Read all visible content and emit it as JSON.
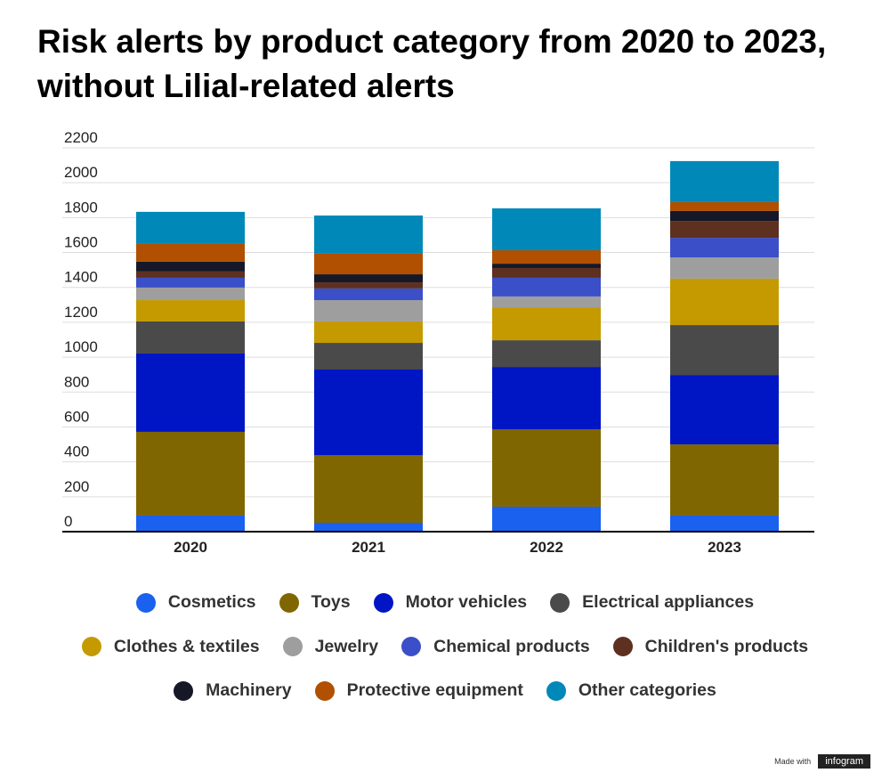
{
  "chart_data": {
    "type": "stacked_bar",
    "title": "Risk alerts by product category from 2020 to 2023, without Lilial-related alerts",
    "categories": [
      "2020",
      "2021",
      "2022",
      "2023"
    ],
    "series": [
      {
        "name": "Cosmetics",
        "color": "#1a61f0",
        "values": [
          92,
          51,
          143,
          92
        ]
      },
      {
        "name": "Toys",
        "color": "#806600",
        "values": [
          480,
          388,
          444,
          408
        ]
      },
      {
        "name": "Motor vehicles",
        "color": "#0016c4",
        "values": [
          449,
          490,
          357,
          398
        ]
      },
      {
        "name": "Electrical appliances",
        "color": "#4a4a4a",
        "values": [
          184,
          153,
          153,
          286
        ]
      },
      {
        "name": "Clothes & textiles",
        "color": "#c49a00",
        "values": [
          122,
          123,
          189,
          266
        ]
      },
      {
        "name": "Jewelry",
        "color": "#9e9e9e",
        "values": [
          72,
          122,
          62,
          122
        ]
      },
      {
        "name": "Chemical products",
        "color": "#3a4fc8",
        "values": [
          56,
          67,
          107,
          112
        ]
      },
      {
        "name": "Children's products",
        "color": "#5e3020",
        "values": [
          36,
          35,
          56,
          97
        ]
      },
      {
        "name": "Machinery",
        "color": "#161828",
        "values": [
          56,
          46,
          25,
          57
        ]
      },
      {
        "name": "Protective equipment",
        "color": "#b05000",
        "values": [
          102,
          118,
          77,
          51
        ]
      },
      {
        "name": "Other categories",
        "color": "#0089b8",
        "values": [
          184,
          219,
          240,
          235
        ]
      }
    ],
    "ylim": [
      0,
      2200
    ],
    "yticks": [
      0,
      200,
      400,
      600,
      800,
      1000,
      1200,
      1400,
      1600,
      1800,
      2000,
      2200
    ],
    "grid": true
  },
  "footer": {
    "made_with": "Made with",
    "brand": "infogram"
  }
}
